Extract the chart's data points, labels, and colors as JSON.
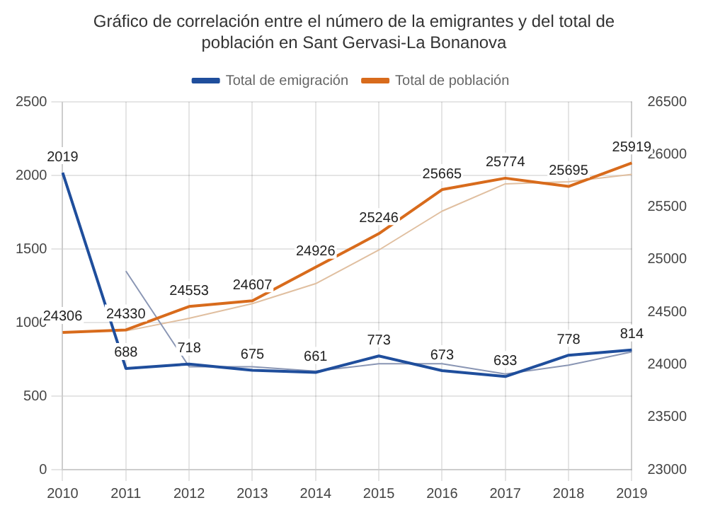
{
  "chart_data": {
    "type": "line",
    "title": "Gráfico de correlación entre el número de la emigrantes y del total de población en Sant Gervasi-La Bonanova",
    "categories": [
      "2010",
      "2011",
      "2012",
      "2013",
      "2014",
      "2015",
      "2016",
      "2017",
      "2018",
      "2019"
    ],
    "series": [
      {
        "name": "Total de emigración",
        "color": "#1f4e9c",
        "values": [
          2019,
          688,
          718,
          675,
          661,
          773,
          673,
          633,
          778,
          814
        ],
        "value_labels": [
          "2019",
          "688",
          "718",
          "675",
          "661",
          "773",
          "673",
          "633",
          "778",
          "814"
        ]
      },
      {
        "name": "Total de población",
        "color": "#d86b1c",
        "axis": "y2",
        "values": [
          24306,
          24330,
          24553,
          24607,
          24926,
          25246,
          25665,
          25774,
          25695,
          25919
        ],
        "value_labels": [
          "24306",
          "24330",
          "24553",
          "24607",
          "24926",
          "25246",
          "25665",
          "25774",
          "25695",
          "25919"
        ]
      },
      {
        "color": "#8a96b4",
        "values": [
          null,
          1350,
          700,
          700,
          670,
          720,
          720,
          650,
          710,
          800
        ]
      },
      {
        "color": "#e0bfa0",
        "axis": "y2",
        "values": [
          null,
          24320,
          24440,
          24580,
          24770,
          25090,
          25460,
          25720,
          25740,
          25810
        ]
      }
    ],
    "ylim": [
      0,
      2500
    ],
    "yticks": [
      0,
      500,
      1000,
      1500,
      2000,
      2500
    ],
    "y2lim": [
      23000,
      26500
    ],
    "y2ticks": [
      23000,
      23500,
      24000,
      24500,
      25000,
      25500,
      26000,
      26500
    ],
    "grid": true,
    "legend": "top",
    "marker": "none",
    "line_style": "solid"
  }
}
